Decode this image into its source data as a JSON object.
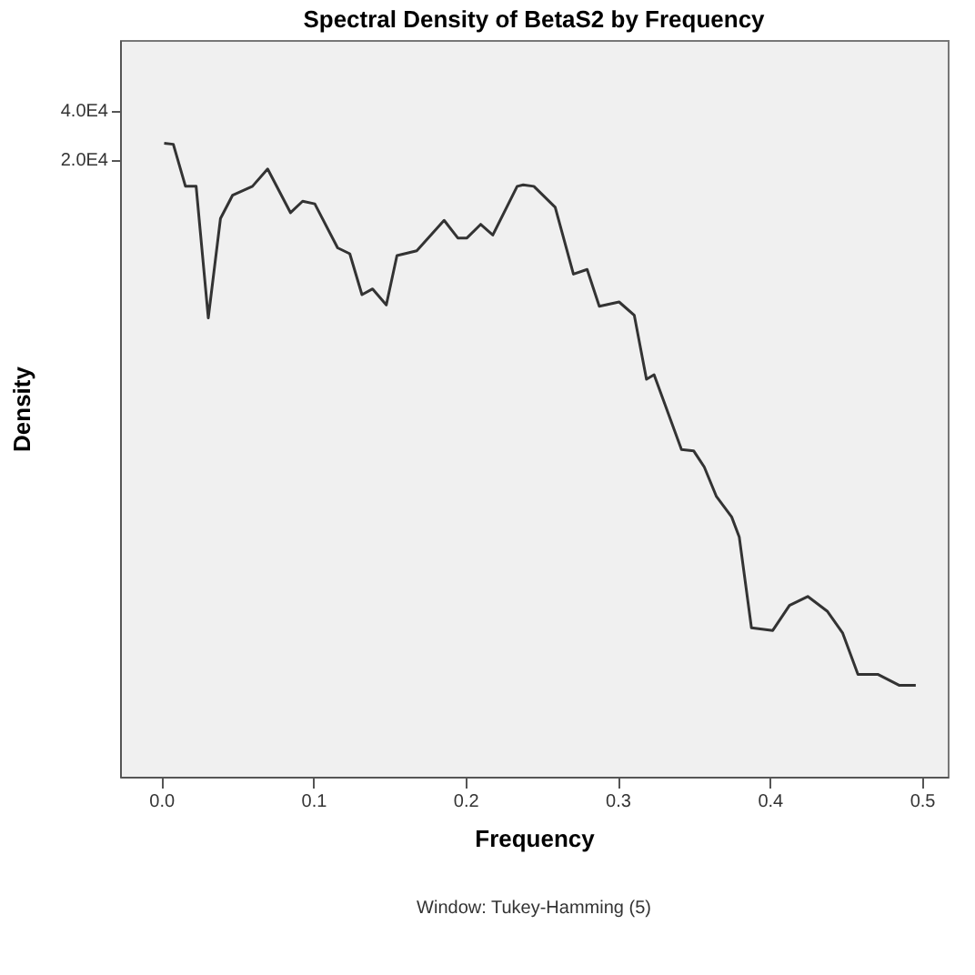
{
  "chart_data": {
    "type": "line",
    "title": "Spectral Density of BetaS2 by Frequency",
    "xlabel": "Frequency",
    "ylabel": "Density",
    "annotations": [
      "Window: Tukey-Hamming (5)"
    ],
    "log": "y",
    "grid": false,
    "legend": false,
    "marker": "none",
    "line_style": "solid",
    "x": [
      0.002,
      0.008,
      0.016,
      0.023,
      0.031,
      0.039,
      0.047,
      0.06,
      0.07,
      0.085,
      0.093,
      0.101,
      0.116,
      0.124,
      0.132,
      0.139,
      0.148,
      0.155,
      0.168,
      0.186,
      0.195,
      0.201,
      0.21,
      0.218,
      0.234,
      0.238,
      0.245,
      0.259,
      0.271,
      0.28,
      0.288,
      0.301,
      0.311,
      0.319,
      0.324,
      0.342,
      0.35,
      0.357,
      0.365,
      0.375,
      0.38,
      0.388,
      0.402,
      0.413,
      0.425,
      0.438,
      0.448,
      0.458,
      0.471,
      0.485,
      0.496
    ],
    "series": [
      {
        "color": "#333333",
        "values": [
          25200,
          24800,
          13700,
          13700,
          2140,
          8700,
          12100,
          13700,
          17500,
          9450,
          11100,
          10700,
          5750,
          5290,
          2970,
          3220,
          2570,
          5160,
          5520,
          8480,
          6610,
          6610,
          8010,
          6890,
          13700,
          14000,
          13700,
          10200,
          3970,
          4240,
          2520,
          2680,
          2220,
          900,
          960,
          334,
          328,
          261,
          172,
          129,
          97,
          27,
          26,
          37,
          42,
          34,
          25,
          14,
          14,
          12,
          12
        ]
      }
    ],
    "xlim": [
      -0.027,
      0.517
    ],
    "xticks": [
      {
        "value": 0,
        "label": "0.0"
      },
      0.1,
      0.2,
      0.3,
      0.4,
      0.5
    ],
    "ylim": [
      3.3,
      108000
    ],
    "yticks": [
      {
        "value": 40000,
        "label": "4.0E4"
      },
      {
        "value": 20000,
        "label": "2.0E4"
      }
    ]
  }
}
